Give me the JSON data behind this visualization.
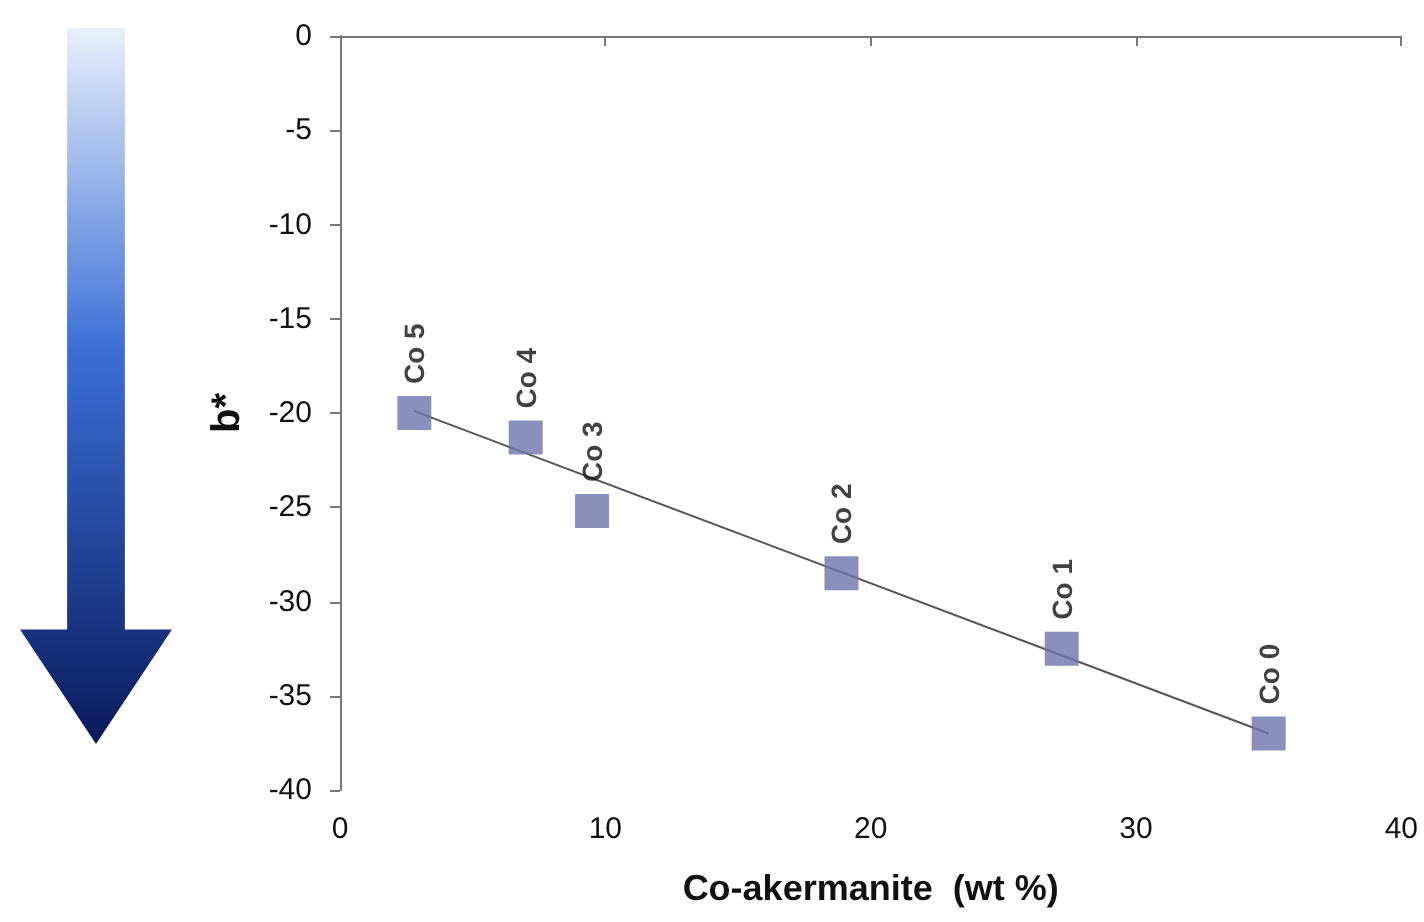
{
  "chart_data": {
    "type": "scatter",
    "xlabel": "Co-akermanite  (wt %)",
    "ylabel": "b*",
    "x": [
      2.8,
      7.0,
      9.5,
      18.9,
      27.2,
      35.0
    ],
    "series": [
      {
        "color": "#6b74aa",
        "values": [
          -20,
          -21.3,
          -25.2,
          -28.5,
          -32.5,
          -37.0
        ]
      },
      {
        "type": "line",
        "color": "#555555",
        "x": [
          2.8,
          35.0
        ],
        "values": [
          -19.9,
          -37.0
        ],
        "marker": "none"
      }
    ],
    "marker": "square",
    "xlim": [
      0,
      40
    ],
    "xticks": [
      0,
      10,
      20,
      30,
      40
    ],
    "ylim": [
      -40,
      0
    ],
    "yticks": [
      -40,
      -35,
      -30,
      -25,
      -20,
      -15,
      -10,
      -5,
      0
    ],
    "annotations": [
      {
        "text": "Co 5",
        "x": 2.8,
        "y": -20
      },
      {
        "text": "Co 4",
        "x": 7.0,
        "y": -21.3
      },
      {
        "text": "Co 3",
        "x": 9.5,
        "y": -25.2
      },
      {
        "text": "Co 2",
        "x": 18.9,
        "y": -28.5
      },
      {
        "text": "Co 1",
        "x": 27.2,
        "y": -32.5
      },
      {
        "text": "Co 0",
        "x": 35.0,
        "y": -37.0
      }
    ]
  }
}
